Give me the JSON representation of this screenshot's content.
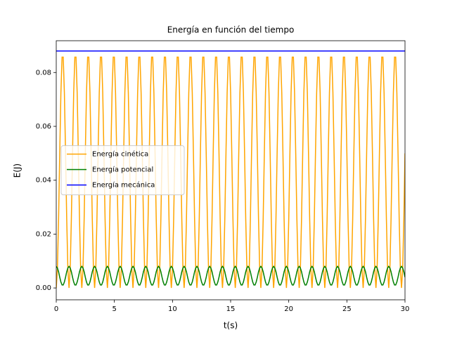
{
  "chart_data": {
    "type": "line",
    "title": "Energía en función del tiempo",
    "x_label": "t(s)",
    "y_label": "E(J)",
    "xlim": [
      0,
      30
    ],
    "ylim": [
      -0.0044,
      0.0918
    ],
    "xticks": [
      0,
      5,
      10,
      15,
      20,
      25,
      30
    ],
    "yticks": [
      {
        "value": 0,
        "label": "0.00"
      },
      {
        "value": 0.02,
        "label": "0.02"
      },
      {
        "value": 0.04,
        "label": "0.04"
      },
      {
        "value": 0.06,
        "label": "0.06"
      },
      {
        "value": 0.08,
        "label": "0.08"
      }
    ],
    "legend": "center left",
    "x": [
      0,
      0.1,
      0.2,
      0.3,
      0.4,
      0.5,
      0.6,
      0.7,
      0.8,
      0.9,
      1,
      1.1,
      1.2,
      1.3,
      1.4,
      1.5,
      1.6,
      1.7,
      1.8,
      1.9,
      2,
      2.1,
      2.2,
      2.3,
      2.4,
      2.5,
      2.6,
      2.7,
      2.8,
      2.9,
      3,
      3.1,
      3.2,
      3.3,
      3.4,
      3.5,
      3.6,
      3.7,
      3.8,
      3.9,
      4,
      4.1,
      4.2,
      4.3,
      4.4,
      4.5,
      4.6,
      4.7,
      4.8,
      4.9,
      5,
      5.1,
      5.2,
      5.3,
      5.4,
      5.5,
      5.6,
      5.7,
      5.8,
      5.9,
      6,
      6.1,
      6.2,
      6.3,
      6.4,
      6.5,
      6.6,
      6.7,
      6.8,
      6.9,
      7,
      7.1,
      7.2,
      7.3,
      7.4,
      7.5,
      7.6,
      7.7,
      7.8,
      7.9,
      8,
      8.1,
      8.2,
      8.3,
      8.4,
      8.5,
      8.6,
      8.7,
      8.8,
      8.9,
      9,
      9.1,
      9.2,
      9.3,
      9.4,
      9.5,
      9.6,
      9.7,
      9.8,
      9.9,
      10,
      10.1,
      10.2,
      10.3,
      10.4,
      10.5,
      10.6,
      10.7,
      10.8,
      10.9,
      11,
      11.1,
      11.2,
      11.3,
      11.4,
      11.5,
      11.6,
      11.7,
      11.8,
      11.9,
      12,
      12.1,
      12.2,
      12.3,
      12.4,
      12.5,
      12.6,
      12.7,
      12.8,
      12.9,
      13,
      13.1,
      13.2,
      13.3,
      13.4,
      13.5,
      13.6,
      13.7,
      13.8,
      13.9,
      14,
      14.1,
      14.2,
      14.3,
      14.4,
      14.5,
      14.6,
      14.7,
      14.8,
      14.9,
      15,
      15.1,
      15.2,
      15.3,
      15.4,
      15.5,
      15.6,
      15.7,
      15.8,
      15.9,
      16,
      16.1,
      16.2,
      16.3,
      16.4,
      16.5,
      16.6,
      16.7,
      16.8,
      16.9,
      17,
      17.1,
      17.2,
      17.3,
      17.4,
      17.5,
      17.6,
      17.7,
      17.8,
      17.9,
      18,
      18.1,
      18.2,
      18.3,
      18.4,
      18.5,
      18.6,
      18.7,
      18.8,
      18.9,
      19,
      19.1,
      19.2,
      19.3,
      19.4,
      19.5,
      19.6,
      19.7,
      19.8,
      19.9,
      20,
      20.1,
      20.2,
      20.3,
      20.4,
      20.5,
      20.6,
      20.7,
      20.8,
      20.9,
      21,
      21.1,
      21.2,
      21.3,
      21.4,
      21.5,
      21.6,
      21.7,
      21.8,
      21.9,
      22,
      22.1,
      22.2,
      22.3,
      22.4,
      22.5,
      22.6,
      22.7,
      22.8,
      22.9,
      23,
      23.1,
      23.2,
      23.3,
      23.4,
      23.5,
      23.6,
      23.7,
      23.8,
      23.9,
      24,
      24.1,
      24.2,
      24.3,
      24.4,
      24.5,
      24.6,
      24.7,
      24.8,
      24.9,
      25,
      25.1,
      25.2,
      25.3,
      25.4,
      25.5,
      25.6,
      25.7,
      25.8,
      25.9,
      26,
      26.1,
      26.2,
      26.3,
      26.4,
      26.5,
      26.6,
      26.7,
      26.8,
      26.9,
      27,
      27.1,
      27.2,
      27.3,
      27.4,
      27.5,
      27.6,
      27.7,
      27.8,
      27.9,
      28,
      28.1,
      28.2,
      28.3,
      28.4,
      28.5,
      28.6,
      28.7,
      28.8,
      28.9,
      29,
      29.1,
      29.2,
      29.3,
      29.4,
      29.5,
      29.6,
      29.7,
      29.8,
      29.9,
      30
    ],
    "series": [
      {
        "name": "Energía cinética",
        "color": "#ffa500",
        "values": [
          0,
          0.007,
          0.0256,
          0.05,
          0.0724,
          0.0857,
          0.0857,
          0.0724,
          0.05,
          0.0256,
          0.007,
          0,
          0.007,
          0.0256,
          0.05,
          0.0724,
          0.0857,
          0.0857,
          0.0724,
          0.05,
          0.0256,
          0.007,
          0,
          0.007,
          0.0256,
          0.05,
          0.0724,
          0.0857,
          0.0857,
          0.0724,
          0.05,
          0.0256,
          0.007,
          0,
          0.007,
          0.0256,
          0.05,
          0.0724,
          0.0857,
          0.0857,
          0.0724,
          0.05,
          0.0256,
          0.007,
          0,
          0.007,
          0.0256,
          0.05,
          0.0724,
          0.0857,
          0.0857,
          0.0724,
          0.05,
          0.0256,
          0.007,
          0,
          0.007,
          0.0256,
          0.05,
          0.0724,
          0.0857,
          0.0857,
          0.0724,
          0.05,
          0.0256,
          0.007,
          0,
          0.007,
          0.0256,
          0.05,
          0.0724,
          0.0857,
          0.0857,
          0.0724,
          0.05,
          0.0256,
          0.007,
          0,
          0.007,
          0.0256,
          0.05,
          0.0724,
          0.0857,
          0.0857,
          0.0724,
          0.05,
          0.0256,
          0.007,
          0,
          0.007,
          0.0256,
          0.05,
          0.0724,
          0.0857,
          0.0857,
          0.0724,
          0.05,
          0.0256,
          0.007,
          0,
          0.007,
          0.0256,
          0.05,
          0.0724,
          0.0857,
          0.0857,
          0.0724,
          0.05,
          0.0256,
          0.007,
          0,
          0.007,
          0.0256,
          0.05,
          0.0724,
          0.0857,
          0.0857,
          0.0724,
          0.05,
          0.0256,
          0.007,
          0,
          0.007,
          0.0256,
          0.05,
          0.0724,
          0.0857,
          0.0857,
          0.0724,
          0.05,
          0.0256,
          0.007,
          0,
          0.007,
          0.0256,
          0.05,
          0.0724,
          0.0857,
          0.0857,
          0.0724,
          0.05,
          0.0256,
          0.007,
          0,
          0.007,
          0.0256,
          0.05,
          0.0724,
          0.0857,
          0.0857,
          0.0724,
          0.05,
          0.0256,
          0.007,
          0,
          0.007,
          0.0256,
          0.05,
          0.0724,
          0.0857,
          0.0857,
          0.0724,
          0.05,
          0.0256,
          0.007,
          0,
          0.007,
          0.0256,
          0.05,
          0.0724,
          0.0857,
          0.0857,
          0.0724,
          0.05,
          0.0256,
          0.007,
          0,
          0.007,
          0.0256,
          0.05,
          0.0724,
          0.0857,
          0.0857,
          0.0724,
          0.05,
          0.0256,
          0.007,
          0,
          0.007,
          0.0256,
          0.05,
          0.0724,
          0.0857,
          0.0857,
          0.0724,
          0.05,
          0.0256,
          0.007,
          0,
          0.007,
          0.0256,
          0.05,
          0.0724,
          0.0857,
          0.0857,
          0.0724,
          0.05,
          0.0256,
          0.007,
          0,
          0.007,
          0.0256,
          0.05,
          0.0724,
          0.0857,
          0.0857,
          0.0724,
          0.05,
          0.0256,
          0.007,
          0,
          0.007,
          0.0256,
          0.05,
          0.0724,
          0.0857,
          0.0857,
          0.0724,
          0.05,
          0.0256,
          0.007,
          0,
          0.007,
          0.0256,
          0.05,
          0.0724,
          0.0857,
          0.0857,
          0.0724,
          0.05,
          0.0256,
          0.007,
          0,
          0.007,
          0.0256,
          0.05,
          0.0724,
          0.0857,
          0.0857,
          0.0724,
          0.05,
          0.0256,
          0.007,
          0,
          0.007,
          0.0256,
          0.05,
          0.0724,
          0.0857,
          0.0857,
          0.0724,
          0.05,
          0.0256,
          0.007,
          0,
          0.007,
          0.0256,
          0.05,
          0.0724,
          0.0857,
          0.0857,
          0.0724,
          0.05,
          0.0256,
          0.007,
          0,
          0.007,
          0.0256,
          0.05,
          0.0724,
          0.0857,
          0.0857,
          0.0724,
          0.05,
          0.0256,
          0.007,
          0,
          0.007,
          0.0256,
          0.05,
          0.0724,
          0.0857,
          0.0857,
          0.0724,
          0.05,
          0.0256,
          0.007,
          0,
          0.007,
          0.0256,
          0.05
        ]
      },
      {
        "name": "Energía potencial",
        "color": "#008000",
        "values": [
          0.008,
          0.0074,
          0.006,
          0.004,
          0.0022,
          0.0011,
          0.0011,
          0.0022,
          0.004,
          0.006,
          0.0074,
          0.008,
          0.0074,
          0.006,
          0.004,
          0.0022,
          0.0011,
          0.0011,
          0.0022,
          0.004,
          0.006,
          0.0074,
          0.008,
          0.0074,
          0.006,
          0.004,
          0.0022,
          0.0011,
          0.0011,
          0.0022,
          0.004,
          0.006,
          0.0074,
          0.008,
          0.0074,
          0.006,
          0.004,
          0.0022,
          0.0011,
          0.0011,
          0.0022,
          0.004,
          0.006,
          0.0074,
          0.008,
          0.0074,
          0.006,
          0.004,
          0.0022,
          0.0011,
          0.0011,
          0.0022,
          0.004,
          0.006,
          0.0074,
          0.008,
          0.0074,
          0.006,
          0.004,
          0.0022,
          0.0011,
          0.0011,
          0.0022,
          0.004,
          0.006,
          0.0074,
          0.008,
          0.0074,
          0.006,
          0.004,
          0.0022,
          0.0011,
          0.0011,
          0.0022,
          0.004,
          0.006,
          0.0074,
          0.008,
          0.0074,
          0.006,
          0.004,
          0.0022,
          0.0011,
          0.0011,
          0.0022,
          0.004,
          0.006,
          0.0074,
          0.008,
          0.0074,
          0.006,
          0.004,
          0.0022,
          0.0011,
          0.0011,
          0.0022,
          0.004,
          0.006,
          0.0074,
          0.008,
          0.0074,
          0.006,
          0.004,
          0.0022,
          0.0011,
          0.0011,
          0.0022,
          0.004,
          0.006,
          0.0074,
          0.008,
          0.0074,
          0.006,
          0.004,
          0.0022,
          0.0011,
          0.0011,
          0.0022,
          0.004,
          0.006,
          0.0074,
          0.008,
          0.0074,
          0.006,
          0.004,
          0.0022,
          0.0011,
          0.0011,
          0.0022,
          0.004,
          0.006,
          0.0074,
          0.008,
          0.0074,
          0.006,
          0.004,
          0.0022,
          0.0011,
          0.0011,
          0.0022,
          0.004,
          0.006,
          0.0074,
          0.008,
          0.0074,
          0.006,
          0.004,
          0.0022,
          0.0011,
          0.0011,
          0.0022,
          0.004,
          0.006,
          0.0074,
          0.008,
          0.0074,
          0.006,
          0.004,
          0.0022,
          0.0011,
          0.0011,
          0.0022,
          0.004,
          0.006,
          0.0074,
          0.008,
          0.0074,
          0.006,
          0.004,
          0.0022,
          0.0011,
          0.0011,
          0.0022,
          0.004,
          0.006,
          0.0074,
          0.008,
          0.0074,
          0.006,
          0.004,
          0.0022,
          0.0011,
          0.0011,
          0.0022,
          0.004,
          0.006,
          0.0074,
          0.008,
          0.0074,
          0.006,
          0.004,
          0.0022,
          0.0011,
          0.0011,
          0.0022,
          0.004,
          0.006,
          0.0074,
          0.008,
          0.0074,
          0.006,
          0.004,
          0.0022,
          0.0011,
          0.0011,
          0.0022,
          0.004,
          0.006,
          0.0074,
          0.008,
          0.0074,
          0.006,
          0.004,
          0.0022,
          0.0011,
          0.0011,
          0.0022,
          0.004,
          0.006,
          0.0074,
          0.008,
          0.0074,
          0.006,
          0.004,
          0.0022,
          0.0011,
          0.0011,
          0.0022,
          0.004,
          0.006,
          0.0074,
          0.008,
          0.0074,
          0.006,
          0.004,
          0.0022,
          0.0011,
          0.0011,
          0.0022,
          0.004,
          0.006,
          0.0074,
          0.008,
          0.0074,
          0.006,
          0.004,
          0.0022,
          0.0011,
          0.0011,
          0.0022,
          0.004,
          0.006,
          0.0074,
          0.008,
          0.0074,
          0.006,
          0.004,
          0.0022,
          0.0011,
          0.0011,
          0.0022,
          0.004,
          0.006,
          0.0074,
          0.008,
          0.0074,
          0.006,
          0.004,
          0.0022,
          0.0011,
          0.0011,
          0.0022,
          0.004,
          0.006,
          0.0074,
          0.008,
          0.0074,
          0.006,
          0.004,
          0.0022,
          0.0011,
          0.0011,
          0.0022,
          0.004,
          0.006,
          0.0074,
          0.008,
          0.0074,
          0.006,
          0.004,
          0.0022,
          0.0011,
          0.0011,
          0.0022,
          0.004,
          0.006,
          0.0074,
          0.008,
          0.0074,
          0.006,
          0.004
        ]
      },
      {
        "name": "Energía mecánica",
        "color": "#0000ff",
        "x": [
          0,
          30
        ],
        "values": [
          0.088,
          0.088
        ]
      }
    ]
  }
}
